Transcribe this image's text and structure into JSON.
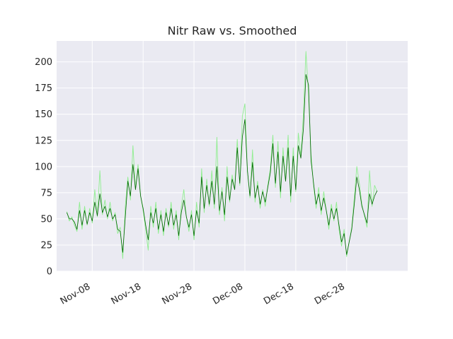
{
  "chart_data": {
    "type": "line",
    "title": "Nitr Raw vs. Smoothed",
    "xlabel": "",
    "ylabel": "",
    "x_range": [
      "2023-11-01",
      "2024-01-09"
    ],
    "ylim": [
      0,
      220
    ],
    "y_ticks": [
      0,
      25,
      50,
      75,
      100,
      125,
      150,
      175,
      200
    ],
    "x_ticks": [
      {
        "date": "2023-11-08",
        "label": "Nov-08"
      },
      {
        "date": "2023-11-18",
        "label": "Nov-18"
      },
      {
        "date": "2023-11-28",
        "label": "Nov-28"
      },
      {
        "date": "2023-12-08",
        "label": "Dec-08"
      },
      {
        "date": "2023-12-18",
        "label": "Dec-18"
      },
      {
        "date": "2023-12-28",
        "label": "Dec-28"
      }
    ],
    "grid": true,
    "background": "#eaeaf2",
    "series": [
      {
        "color": "#90ee90",
        "points": [
          [
            "2023-11-03 00:00",
            57
          ],
          [
            "2023-11-03 12:00",
            48
          ],
          [
            "2023-11-04 00:00",
            52
          ],
          [
            "2023-11-04 12:00",
            44
          ],
          [
            "2023-11-05 00:00",
            38
          ],
          [
            "2023-11-05 12:00",
            66
          ],
          [
            "2023-11-06 00:00",
            40
          ],
          [
            "2023-11-06 12:00",
            62
          ],
          [
            "2023-11-07 00:00",
            44
          ],
          [
            "2023-11-07 12:00",
            60
          ],
          [
            "2023-11-08 00:00",
            46
          ],
          [
            "2023-11-08 12:00",
            78
          ],
          [
            "2023-11-09 00:00",
            52
          ],
          [
            "2023-11-09 12:00",
            96
          ],
          [
            "2023-11-10 00:00",
            54
          ],
          [
            "2023-11-10 12:00",
            68
          ],
          [
            "2023-11-11 00:00",
            50
          ],
          [
            "2023-11-11 12:00",
            66
          ],
          [
            "2023-11-12 00:00",
            48
          ],
          [
            "2023-11-12 12:00",
            56
          ],
          [
            "2023-11-13 00:00",
            36
          ],
          [
            "2023-11-13 12:00",
            42
          ],
          [
            "2023-11-14 00:00",
            12
          ],
          [
            "2023-11-14 12:00",
            62
          ],
          [
            "2023-11-15 00:00",
            90
          ],
          [
            "2023-11-15 12:00",
            68
          ],
          [
            "2023-11-16 00:00",
            120
          ],
          [
            "2023-11-16 12:00",
            78
          ],
          [
            "2023-11-17 00:00",
            102
          ],
          [
            "2023-11-17 12:00",
            72
          ],
          [
            "2023-11-18 00:00",
            58
          ],
          [
            "2023-11-18 12:00",
            40
          ],
          [
            "2023-11-19 00:00",
            20
          ],
          [
            "2023-11-19 12:00",
            62
          ],
          [
            "2023-11-20 00:00",
            42
          ],
          [
            "2023-11-20 12:00",
            66
          ],
          [
            "2023-11-21 00:00",
            36
          ],
          [
            "2023-11-21 12:00",
            58
          ],
          [
            "2023-11-22 00:00",
            34
          ],
          [
            "2023-11-22 12:00",
            60
          ],
          [
            "2023-11-23 00:00",
            42
          ],
          [
            "2023-11-23 12:00",
            66
          ],
          [
            "2023-11-24 00:00",
            40
          ],
          [
            "2023-11-24 12:00",
            58
          ],
          [
            "2023-11-25 00:00",
            30
          ],
          [
            "2023-11-25 12:00",
            62
          ],
          [
            "2023-11-26 00:00",
            78
          ],
          [
            "2023-11-26 12:00",
            52
          ],
          [
            "2023-11-27 00:00",
            38
          ],
          [
            "2023-11-27 12:00",
            58
          ],
          [
            "2023-11-28 00:00",
            30
          ],
          [
            "2023-11-28 12:00",
            66
          ],
          [
            "2023-11-29 00:00",
            42
          ],
          [
            "2023-11-29 12:00",
            98
          ],
          [
            "2023-11-30 00:00",
            56
          ],
          [
            "2023-11-30 12:00",
            88
          ],
          [
            "2023-12-01 00:00",
            62
          ],
          [
            "2023-12-01 12:00",
            96
          ],
          [
            "2023-12-02 00:00",
            60
          ],
          [
            "2023-12-02 12:00",
            128
          ],
          [
            "2023-12-03 00:00",
            54
          ],
          [
            "2023-12-03 12:00",
            80
          ],
          [
            "2023-12-04 00:00",
            48
          ],
          [
            "2023-12-04 12:00",
            100
          ],
          [
            "2023-12-05 00:00",
            66
          ],
          [
            "2023-12-05 12:00",
            92
          ],
          [
            "2023-12-06 00:00",
            78
          ],
          [
            "2023-12-06 12:00",
            126
          ],
          [
            "2023-12-07 00:00",
            82
          ],
          [
            "2023-12-07 12:00",
            148
          ],
          [
            "2023-12-08 00:00",
            160
          ],
          [
            "2023-12-08 12:00",
            96
          ],
          [
            "2023-12-09 00:00",
            70
          ],
          [
            "2023-12-09 12:00",
            116
          ],
          [
            "2023-12-10 00:00",
            66
          ],
          [
            "2023-12-10 12:00",
            86
          ],
          [
            "2023-12-11 00:00",
            60
          ],
          [
            "2023-12-11 12:00",
            78
          ],
          [
            "2023-12-12 00:00",
            62
          ],
          [
            "2023-12-12 12:00",
            82
          ],
          [
            "2023-12-13 00:00",
            98
          ],
          [
            "2023-12-13 12:00",
            130
          ],
          [
            "2023-12-14 00:00",
            80
          ],
          [
            "2023-12-14 12:00",
            124
          ],
          [
            "2023-12-15 00:00",
            70
          ],
          [
            "2023-12-15 12:00",
            118
          ],
          [
            "2023-12-16 00:00",
            86
          ],
          [
            "2023-12-16 12:00",
            130
          ],
          [
            "2023-12-17 00:00",
            66
          ],
          [
            "2023-12-17 12:00",
            118
          ],
          [
            "2023-12-18 00:00",
            76
          ],
          [
            "2023-12-18 12:00",
            132
          ],
          [
            "2023-12-19 00:00",
            110
          ],
          [
            "2023-12-19 12:00",
            150
          ],
          [
            "2023-12-20 00:00",
            210
          ],
          [
            "2023-12-20 12:00",
            170
          ],
          [
            "2023-12-21 00:00",
            112
          ],
          [
            "2023-12-21 12:00",
            82
          ],
          [
            "2023-12-22 00:00",
            60
          ],
          [
            "2023-12-22 12:00",
            80
          ],
          [
            "2023-12-23 00:00",
            54
          ],
          [
            "2023-12-23 12:00",
            76
          ],
          [
            "2023-12-24 00:00",
            58
          ],
          [
            "2023-12-24 12:00",
            40
          ],
          [
            "2023-12-25 00:00",
            64
          ],
          [
            "2023-12-25 12:00",
            48
          ],
          [
            "2023-12-26 00:00",
            66
          ],
          [
            "2023-12-26 12:00",
            40
          ],
          [
            "2023-12-27 00:00",
            24
          ],
          [
            "2023-12-27 12:00",
            40
          ],
          [
            "2023-12-28 00:00",
            14
          ],
          [
            "2023-12-28 12:00",
            28
          ],
          [
            "2023-12-29 00:00",
            42
          ],
          [
            "2023-12-29 12:00",
            70
          ],
          [
            "2023-12-30 00:00",
            100
          ],
          [
            "2023-12-30 12:00",
            84
          ],
          [
            "2023-12-31 00:00",
            64
          ],
          [
            "2024-01-01 00:00",
            42
          ],
          [
            "2024-01-01 12:00",
            96
          ],
          [
            "2024-01-02 00:00",
            62
          ],
          [
            "2024-01-02 12:00",
            82
          ],
          [
            "2024-01-03 00:00",
            76
          ]
        ]
      },
      {
        "color": "#006400",
        "points": [
          [
            "2023-11-03 00:00",
            56
          ],
          [
            "2023-11-03 12:00",
            50
          ],
          [
            "2023-11-04 00:00",
            50
          ],
          [
            "2023-11-04 12:00",
            47
          ],
          [
            "2023-11-05 00:00",
            40
          ],
          [
            "2023-11-05 12:00",
            58
          ],
          [
            "2023-11-06 00:00",
            44
          ],
          [
            "2023-11-06 12:00",
            58
          ],
          [
            "2023-11-07 00:00",
            45
          ],
          [
            "2023-11-07 12:00",
            56
          ],
          [
            "2023-11-08 00:00",
            48
          ],
          [
            "2023-11-08 12:00",
            66
          ],
          [
            "2023-11-09 00:00",
            53
          ],
          [
            "2023-11-09 12:00",
            74
          ],
          [
            "2023-11-10 00:00",
            56
          ],
          [
            "2023-11-10 12:00",
            62
          ],
          [
            "2023-11-11 00:00",
            52
          ],
          [
            "2023-11-11 12:00",
            60
          ],
          [
            "2023-11-12 00:00",
            50
          ],
          [
            "2023-11-12 12:00",
            54
          ],
          [
            "2023-11-13 00:00",
            40
          ],
          [
            "2023-11-13 12:00",
            38
          ],
          [
            "2023-11-14 00:00",
            18
          ],
          [
            "2023-11-14 12:00",
            52
          ],
          [
            "2023-11-15 00:00",
            86
          ],
          [
            "2023-11-15 12:00",
            72
          ],
          [
            "2023-11-16 00:00",
            102
          ],
          [
            "2023-11-16 12:00",
            78
          ],
          [
            "2023-11-17 00:00",
            98
          ],
          [
            "2023-11-17 12:00",
            72
          ],
          [
            "2023-11-18 00:00",
            60
          ],
          [
            "2023-11-18 12:00",
            44
          ],
          [
            "2023-11-19 00:00",
            30
          ],
          [
            "2023-11-19 12:00",
            56
          ],
          [
            "2023-11-20 00:00",
            46
          ],
          [
            "2023-11-20 12:00",
            60
          ],
          [
            "2023-11-21 00:00",
            40
          ],
          [
            "2023-11-21 12:00",
            54
          ],
          [
            "2023-11-22 00:00",
            38
          ],
          [
            "2023-11-22 12:00",
            56
          ],
          [
            "2023-11-23 00:00",
            44
          ],
          [
            "2023-11-23 12:00",
            60
          ],
          [
            "2023-11-24 00:00",
            44
          ],
          [
            "2023-11-24 12:00",
            54
          ],
          [
            "2023-11-25 00:00",
            34
          ],
          [
            "2023-11-25 12:00",
            56
          ],
          [
            "2023-11-26 00:00",
            68
          ],
          [
            "2023-11-26 12:00",
            52
          ],
          [
            "2023-11-27 00:00",
            42
          ],
          [
            "2023-11-27 12:00",
            54
          ],
          [
            "2023-11-28 00:00",
            34
          ],
          [
            "2023-11-28 12:00",
            58
          ],
          [
            "2023-11-29 00:00",
            46
          ],
          [
            "2023-11-29 12:00",
            90
          ],
          [
            "2023-11-30 00:00",
            60
          ],
          [
            "2023-11-30 12:00",
            82
          ],
          [
            "2023-12-01 00:00",
            64
          ],
          [
            "2023-12-01 12:00",
            86
          ],
          [
            "2023-12-02 00:00",
            64
          ],
          [
            "2023-12-02 12:00",
            100
          ],
          [
            "2023-12-03 00:00",
            58
          ],
          [
            "2023-12-03 12:00",
            76
          ],
          [
            "2023-12-04 00:00",
            54
          ],
          [
            "2023-12-04 12:00",
            90
          ],
          [
            "2023-12-05 00:00",
            68
          ],
          [
            "2023-12-05 12:00",
            88
          ],
          [
            "2023-12-06 00:00",
            78
          ],
          [
            "2023-12-06 12:00",
            118
          ],
          [
            "2023-12-07 00:00",
            84
          ],
          [
            "2023-12-07 12:00",
            128
          ],
          [
            "2023-12-08 00:00",
            145
          ],
          [
            "2023-12-08 12:00",
            96
          ],
          [
            "2023-12-09 00:00",
            72
          ],
          [
            "2023-12-09 12:00",
            104
          ],
          [
            "2023-12-10 00:00",
            70
          ],
          [
            "2023-12-10 12:00",
            82
          ],
          [
            "2023-12-11 00:00",
            64
          ],
          [
            "2023-12-11 12:00",
            76
          ],
          [
            "2023-12-12 00:00",
            66
          ],
          [
            "2023-12-12 12:00",
            80
          ],
          [
            "2023-12-13 00:00",
            94
          ],
          [
            "2023-12-13 12:00",
            122
          ],
          [
            "2023-12-14 00:00",
            84
          ],
          [
            "2023-12-14 12:00",
            114
          ],
          [
            "2023-12-15 00:00",
            76
          ],
          [
            "2023-12-15 12:00",
            110
          ],
          [
            "2023-12-16 00:00",
            86
          ],
          [
            "2023-12-16 12:00",
            118
          ],
          [
            "2023-12-17 00:00",
            72
          ],
          [
            "2023-12-17 12:00",
            110
          ],
          [
            "2023-12-18 00:00",
            78
          ],
          [
            "2023-12-18 12:00",
            120
          ],
          [
            "2023-12-19 00:00",
            108
          ],
          [
            "2023-12-19 12:00",
            136
          ],
          [
            "2023-12-20 00:00",
            188
          ],
          [
            "2023-12-20 12:00",
            178
          ],
          [
            "2023-12-21 00:00",
            106
          ],
          [
            "2023-12-21 12:00",
            84
          ],
          [
            "2023-12-22 00:00",
            64
          ],
          [
            "2023-12-22 12:00",
            74
          ],
          [
            "2023-12-23 00:00",
            58
          ],
          [
            "2023-12-23 12:00",
            70
          ],
          [
            "2023-12-24 00:00",
            58
          ],
          [
            "2023-12-24 12:00",
            44
          ],
          [
            "2023-12-25 00:00",
            60
          ],
          [
            "2023-12-25 12:00",
            50
          ],
          [
            "2023-12-26 00:00",
            60
          ],
          [
            "2023-12-26 12:00",
            44
          ],
          [
            "2023-12-27 00:00",
            28
          ],
          [
            "2023-12-27 12:00",
            36
          ],
          [
            "2023-12-28 00:00",
            16
          ],
          [
            "2023-12-28 12:00",
            28
          ],
          [
            "2023-12-29 00:00",
            40
          ],
          [
            "2023-12-29 12:00",
            64
          ],
          [
            "2023-12-30 00:00",
            90
          ],
          [
            "2023-12-30 12:00",
            78
          ],
          [
            "2023-12-31 00:00",
            62
          ],
          [
            "2024-01-01 00:00",
            46
          ],
          [
            "2024-01-01 12:00",
            74
          ],
          [
            "2024-01-02 00:00",
            64
          ],
          [
            "2024-01-02 12:00",
            72
          ],
          [
            "2024-01-03 00:00",
            77
          ]
        ]
      }
    ]
  }
}
